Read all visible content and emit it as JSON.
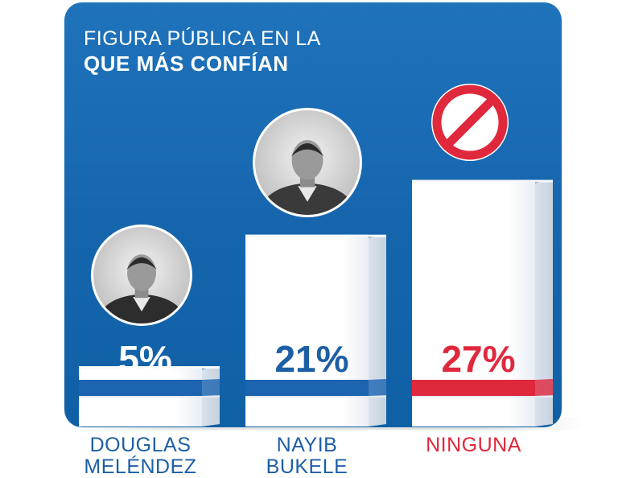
{
  "header": {
    "title_line1": "FIGURA PÚBLICA EN LA",
    "title_line2": "QUE MÁS CONFÍAN"
  },
  "chart_data": {
    "type": "bar",
    "title": "FIGURA PÚBLICA EN LA QUE MÁS CONFÍAN",
    "categories": [
      "DOUGLAS MELÉNDEZ",
      "NAYIB BUKELE",
      "NINGUNA"
    ],
    "category_lines": [
      [
        "DOUGLAS",
        "MELÉNDEZ"
      ],
      [
        "NAYIB",
        "BUKELE"
      ],
      [
        "NINGUNA"
      ]
    ],
    "values": [
      5,
      21,
      27
    ],
    "value_labels": [
      "5%",
      "21%",
      "27%"
    ],
    "unit": "%",
    "xlabel": "",
    "ylabel": "",
    "grid": false,
    "legend": "none"
  },
  "colors": {
    "panel": "#1565ad",
    "bar_face": "#ffffff",
    "bar_side": "#d7e1ec",
    "value_blue": "#1d5fa5",
    "band_blue": "#1c64b0",
    "ninguna_red": "#e0283c",
    "label_blue": "#1d5fa5"
  },
  "icons": [
    "portrait-douglas-melendez",
    "portrait-nayib-bukele",
    "no-symbol-icon"
  ]
}
